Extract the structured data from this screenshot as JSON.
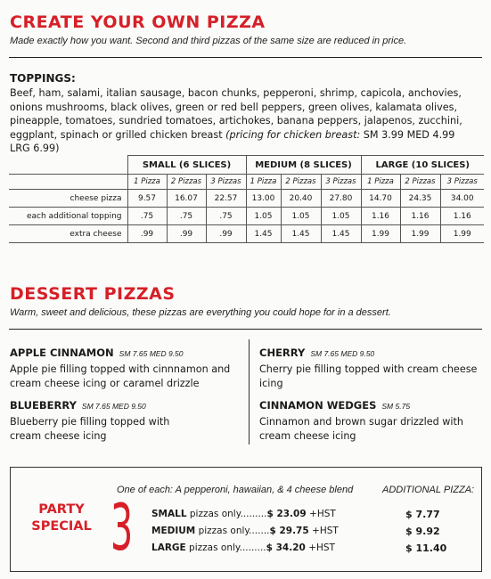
{
  "create": {
    "title": "CREATE YOUR OWN PIZZA",
    "subtitle": "Made exactly how you want. Second and third pizzas of the same size are reduced in price."
  },
  "toppings": {
    "heading": "TOPPINGS:",
    "text": "Beef, ham, salami, italian sausage, bacon chunks, pepperoni, shrimp, capicola, anchovies, onions mushrooms, black olives, green or red bell peppers, green olives, kalamata olives, pineapple, tomatoes, sundried tomatoes, artichokes, banana peppers, jalapenos, zucchini, eggplant, spinach or grilled chicken breast",
    "chicken_label": "(pricing for chicken breast:",
    "chicken_prices": "SM 3.99 MED 4.99 LRG 6.99)"
  },
  "price_table": {
    "sizes": [
      "SMALL (6 SLICES)",
      "MEDIUM (8 SLICES)",
      "LARGE (10 SLICES)"
    ],
    "quantities": [
      "1 Pizza",
      "2 Pizzas",
      "3 Pizzas"
    ],
    "rows": [
      {
        "label": "cheese pizza",
        "values": [
          "9.57",
          "16.07",
          "22.57",
          "13.00",
          "20.40",
          "27.80",
          "14.70",
          "24.35",
          "34.00"
        ]
      },
      {
        "label": "each additional topping",
        "values": [
          ".75",
          ".75",
          ".75",
          "1.05",
          "1.05",
          "1.05",
          "1.16",
          "1.16",
          "1.16"
        ]
      },
      {
        "label": "extra cheese",
        "values": [
          ".99",
          ".99",
          ".99",
          "1.45",
          "1.45",
          "1.45",
          "1.99",
          "1.99",
          "1.99"
        ]
      }
    ]
  },
  "dessert": {
    "title": "DESSERT PIZZAS",
    "subtitle": "Warm, sweet and delicious, these pizzas are everything you could hope for in a dessert.",
    "items": [
      {
        "name": "APPLE CINNAMON",
        "price": "SM 7.65  MED 9.50",
        "desc": "Apple pie filling topped with cinnnamon and cream cheese icing or caramel drizzle"
      },
      {
        "name": "BLUEBERRY",
        "price": "SM 7.65  MED 9.50",
        "desc": "Blueberry pie filling topped with cream cheese icing"
      },
      {
        "name": "CHERRY",
        "price": "SM 7.65  MED 9.50",
        "desc": "Cherry pie filling topped with cream cheese icing"
      },
      {
        "name": "CINNAMON WEDGES",
        "price": "SM 5.75",
        "desc": "Cinnamon and brown sugar drizzled with cream cheese icing"
      }
    ]
  },
  "party": {
    "label_line1": "PARTY",
    "label_line2": "SPECIAL",
    "big_number": "3",
    "intro": "One of each: A pepperoni, hawaiian, & 4 cheese blend",
    "additional_heading": "ADDITIONAL PIZZA:",
    "options": [
      {
        "size": "SMALL",
        "text": "pizzas only",
        "dots": ".........",
        "price": "$ 23.09",
        "tax": "+HST",
        "additional": "$ 7.77"
      },
      {
        "size": "MEDIUM",
        "text": "pizzas only",
        "dots": ".......",
        "price": "$ 29.75",
        "tax": "+HST",
        "additional": "$ 9.92"
      },
      {
        "size": "LARGE",
        "text": "pizzas only",
        "dots": ".........",
        "price": "$ 34.20",
        "tax": "+HST",
        "additional": "$ 11.40"
      }
    ],
    "colors": {
      "accent": "#d62028"
    }
  }
}
